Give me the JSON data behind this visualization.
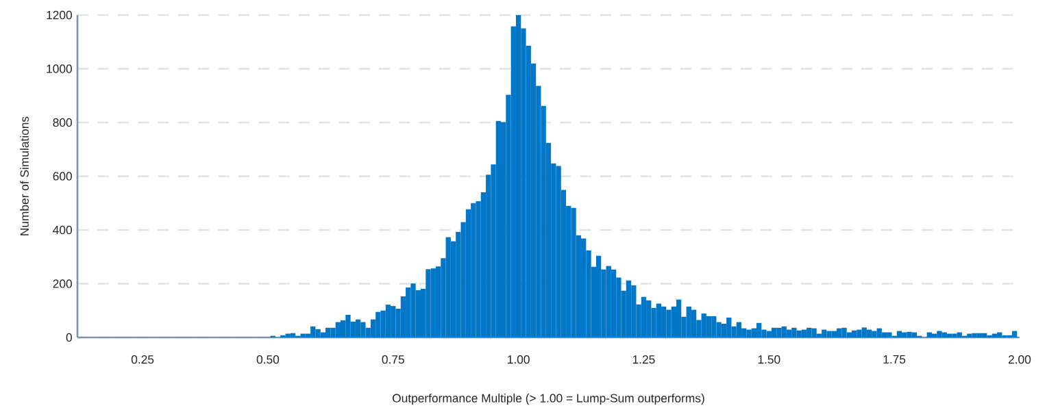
{
  "chart_data": {
    "type": "histogram",
    "xlabel": "Outperformance Multiple (> 1.00 = Lump-Sum outperforms)",
    "ylabel": "Number of Simulations",
    "color": "#0277c8",
    "grid": "y",
    "xlim": [
      0.12,
      2.0
    ],
    "ylim": [
      0,
      1200
    ],
    "xticks": [
      {
        "value": 0.25,
        "label": "0.25"
      },
      {
        "value": 0.5,
        "label": "0.50"
      },
      {
        "value": 0.75,
        "label": "0.75"
      },
      {
        "value": 1.0,
        "label": "1.00"
      },
      {
        "value": 1.25,
        "label": "1.25"
      },
      {
        "value": 1.5,
        "label": "1.50"
      },
      {
        "value": 1.75,
        "label": "1.75"
      },
      {
        "value": 2.0,
        "label": "2.00"
      }
    ],
    "yticks": [
      0,
      200,
      400,
      600,
      800,
      1000,
      1200
    ],
    "bins": [
      0.505,
      0.515,
      0.525,
      0.535,
      0.545,
      0.555,
      0.565,
      0.575,
      0.585,
      0.595,
      0.605,
      0.615,
      0.625,
      0.635,
      0.645,
      0.655,
      0.665,
      0.675,
      0.685,
      0.695,
      0.705,
      0.715,
      0.725,
      0.735,
      0.745,
      0.755,
      0.765,
      0.775,
      0.785,
      0.795,
      0.805,
      0.815,
      0.825,
      0.835,
      0.845,
      0.855,
      0.865,
      0.875,
      0.885,
      0.895,
      0.905,
      0.915,
      0.925,
      0.935,
      0.945,
      0.955,
      0.965,
      0.975,
      0.985,
      0.995,
      1.005,
      1.015,
      1.025,
      1.035,
      1.045,
      1.055,
      1.065,
      1.075,
      1.085,
      1.095,
      1.105,
      1.115,
      1.125,
      1.135,
      1.145,
      1.155,
      1.165,
      1.175,
      1.185,
      1.195,
      1.205,
      1.215,
      1.225,
      1.235,
      1.245,
      1.255,
      1.265,
      1.275,
      1.285,
      1.295,
      1.305,
      1.315,
      1.325,
      1.335,
      1.345,
      1.355,
      1.365,
      1.375,
      1.385,
      1.395,
      1.405,
      1.415,
      1.425,
      1.435,
      1.445,
      1.455,
      1.465,
      1.475,
      1.485,
      1.495,
      1.505,
      1.515,
      1.525,
      1.535,
      1.545,
      1.555,
      1.565,
      1.575,
      1.585,
      1.595,
      1.605,
      1.615,
      1.625,
      1.635,
      1.645,
      1.655,
      1.665,
      1.675,
      1.685,
      1.695,
      1.705,
      1.715,
      1.725,
      1.735,
      1.745,
      1.755,
      1.765,
      1.775,
      1.785,
      1.795,
      1.805,
      1.815,
      1.825,
      1.835,
      1.845,
      1.855,
      1.865,
      1.875,
      1.885,
      1.895,
      1.905,
      1.915,
      1.925,
      1.935,
      1.945,
      1.955,
      1.965,
      1.975,
      1.985,
      1.995
    ],
    "values": [
      6,
      0,
      8,
      14,
      16,
      6,
      14,
      14,
      41,
      31,
      19,
      36,
      36,
      57,
      64,
      84,
      59,
      67,
      57,
      36,
      67,
      95,
      100,
      122,
      117,
      107,
      153,
      186,
      201,
      176,
      181,
      254,
      257,
      264,
      295,
      373,
      358,
      393,
      429,
      477,
      500,
      507,
      540,
      606,
      644,
      806,
      801,
      903,
      1158,
      1200,
      1150,
      1086,
      1020,
      936,
      862,
      724,
      648,
      638,
      549,
      490,
      482,
      380,
      368,
      324,
      263,
      304,
      253,
      266,
      253,
      223,
      174,
      212,
      194,
      123,
      151,
      138,
      110,
      126,
      115,
      103,
      115,
      141,
      77,
      115,
      103,
      65,
      89,
      79,
      79,
      57,
      51,
      74,
      41,
      57,
      34,
      29,
      34,
      54,
      29,
      24,
      36,
      36,
      41,
      29,
      36,
      26,
      29,
      36,
      34,
      14,
      29,
      24,
      24,
      34,
      36,
      19,
      26,
      29,
      37,
      29,
      24,
      34,
      19,
      19,
      6,
      24,
      19,
      21,
      19,
      6,
      0,
      19,
      14,
      24,
      19,
      14,
      14,
      19,
      6,
      14,
      16,
      16,
      16,
      8,
      14,
      19,
      8,
      8,
      24
    ]
  }
}
